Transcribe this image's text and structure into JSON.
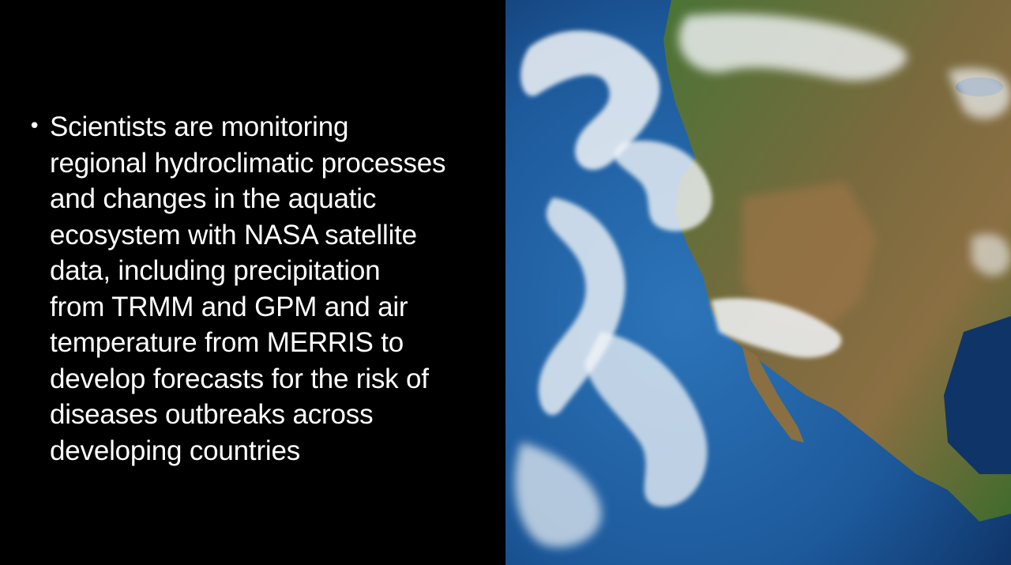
{
  "slide": {
    "bullets": [
      {
        "lines": [
          "Scientists are monitoring",
          "regional hydroclimatic processes",
          "and changes in the aquatic",
          "ecosystem with NASA satellite",
          "data, including precipitation",
          "from TRMM and GPM and air",
          "temperature from MERRIS to",
          "develop forecasts for the risk of",
          "diseases outbreaks across",
          "developing countries"
        ]
      }
    ],
    "image": {
      "subject": "satellite-view-of-earth-western-north-america",
      "colors": {
        "ocean": "#1d5a9c",
        "ocean_deep": "#0f3468",
        "land_green": "#3f6b2c",
        "land_desert": "#8a6f42",
        "cloud": "#f2f5f8"
      }
    }
  }
}
